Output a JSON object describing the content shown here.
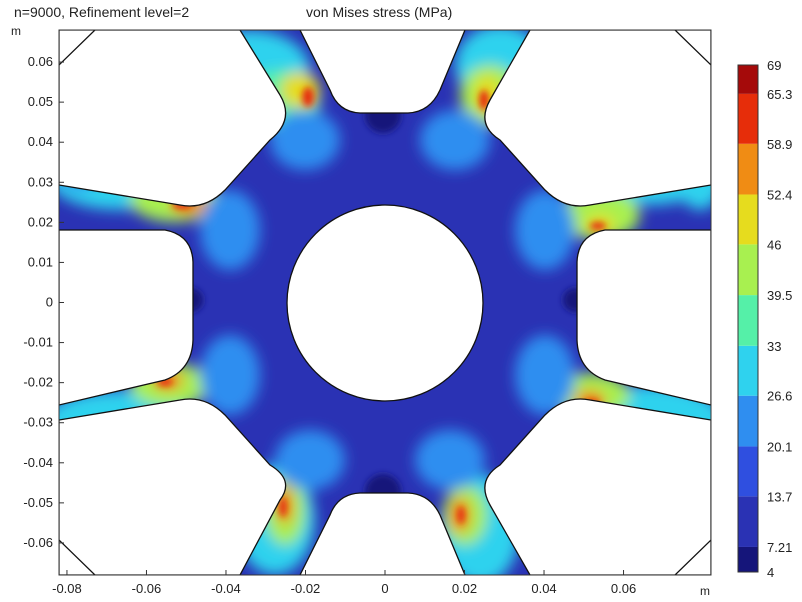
{
  "header": {
    "title_left": "n=9000, Refinement level=2",
    "title_center": "von Mises stress (MPa)"
  },
  "axes": {
    "y_unit": "m",
    "x_unit": "m"
  },
  "colors": {
    "background_plot": "#ffffff",
    "base_field": "#2a32b4"
  },
  "chart_data": {
    "type": "heatmap",
    "title": "von Mises stress (MPa)",
    "subtitle": "n=9000, Refinement level=2",
    "xlabel": "m",
    "ylabel": "m",
    "xlim": [
      -0.082,
      0.082
    ],
    "ylim": [
      -0.068,
      0.068
    ],
    "x_ticks": [
      -0.08,
      -0.06,
      -0.04,
      -0.02,
      0,
      0.02,
      0.04,
      0.06
    ],
    "x_tick_labels": [
      "-0.08",
      "-0.06",
      "-0.04",
      "-0.02",
      "0",
      "0.02",
      "0.04",
      "0.06"
    ],
    "y_ticks": [
      0.06,
      0.05,
      0.04,
      0.03,
      0.02,
      0.01,
      0,
      -0.01,
      -0.02,
      -0.03,
      -0.04,
      -0.05,
      -0.06
    ],
    "y_tick_labels": [
      "0.06",
      "0.05",
      "0.04",
      "0.03",
      "0.02",
      "0.01",
      "0",
      "-0.01",
      "-0.02",
      "-0.03",
      "-0.04",
      "-0.05",
      "-0.06"
    ],
    "grid": false,
    "colorbar": {
      "position": "right",
      "min": 4,
      "max": 69,
      "labels": [
        "69",
        "65.3",
        "58.9",
        "52.4",
        "46",
        "39.5",
        "33",
        "26.6",
        "20.1",
        "13.7",
        "7.21",
        "4"
      ],
      "label_values": [
        69,
        65.3,
        58.9,
        52.4,
        46,
        39.5,
        33,
        26.6,
        20.1,
        13.7,
        7.21,
        4
      ],
      "colors_low_to_high": [
        "#15157a",
        "#2a32b4",
        "#2f4fe0",
        "#2f8ef0",
        "#2fd2ee",
        "#55f0a8",
        "#a8f050",
        "#e6dc1e",
        "#f08c14",
        "#e62d0a",
        "#a50a0a"
      ]
    }
  }
}
